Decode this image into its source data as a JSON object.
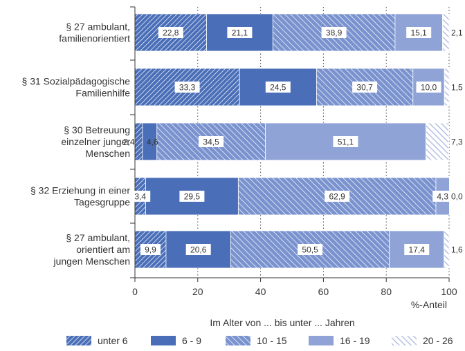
{
  "chart_data": {
    "type": "bar",
    "orientation": "horizontal",
    "stacked": true,
    "categories": [
      [
        "§ 27 ambulant,",
        "familienorientiert"
      ],
      [
        "§ 31 Sozialpädagogische",
        "Familienhilfe"
      ],
      [
        "§ 30 Betreuung",
        "einzelner junger",
        "Menschen"
      ],
      [
        "§ 32 Erziehung in einer",
        "Tagesgruppe"
      ],
      [
        "§ 27 ambulant,",
        "orientiert am",
        "jungen Menschen"
      ]
    ],
    "series": [
      {
        "name": "unter 6",
        "values": [
          22.8,
          33.3,
          2.4,
          3.4,
          9.9
        ],
        "labels": [
          "22,8",
          "33,3",
          "2,4",
          "3,4",
          "9,9"
        ],
        "color": "#4a6fb8",
        "pattern": "dense-hatch"
      },
      {
        "name": "6 - 9",
        "values": [
          21.1,
          24.5,
          4.6,
          29.5,
          20.6
        ],
        "labels": [
          "21,1",
          "24,5",
          "4,6",
          "29,5",
          "20,6"
        ],
        "color": "#4a6fb8",
        "pattern": "solid"
      },
      {
        "name": "10 - 15",
        "values": [
          38.9,
          30.7,
          34.5,
          62.9,
          50.5
        ],
        "labels": [
          "38,9",
          "30,7",
          "34,5",
          "62,9",
          "50,5"
        ],
        "color": "#7a93cf",
        "pattern": "hatch"
      },
      {
        "name": "16 - 19",
        "values": [
          15.1,
          10.0,
          51.1,
          4.3,
          17.4
        ],
        "labels": [
          "15,1",
          "10,0",
          "51,1",
          "4,3",
          "17,4"
        ],
        "color": "#8fa3d6",
        "pattern": "solid"
      },
      {
        "name": "20 - 26",
        "values": [
          2.1,
          1.5,
          7.3,
          0.0,
          1.6
        ],
        "labels": [
          "2,1",
          "1,5",
          "7,3",
          "0,0",
          "1,6"
        ],
        "color": "#a9b8e0",
        "pattern": "light-hatch"
      }
    ],
    "xlim": [
      0,
      100
    ],
    "xticks": [
      0,
      20,
      40,
      60,
      80,
      100
    ],
    "xlabel": "%-Anteil",
    "legend_title": "Im Alter von ... bis unter ... Jahren",
    "legend_position": "bottom",
    "grid": "vertical dotted"
  }
}
